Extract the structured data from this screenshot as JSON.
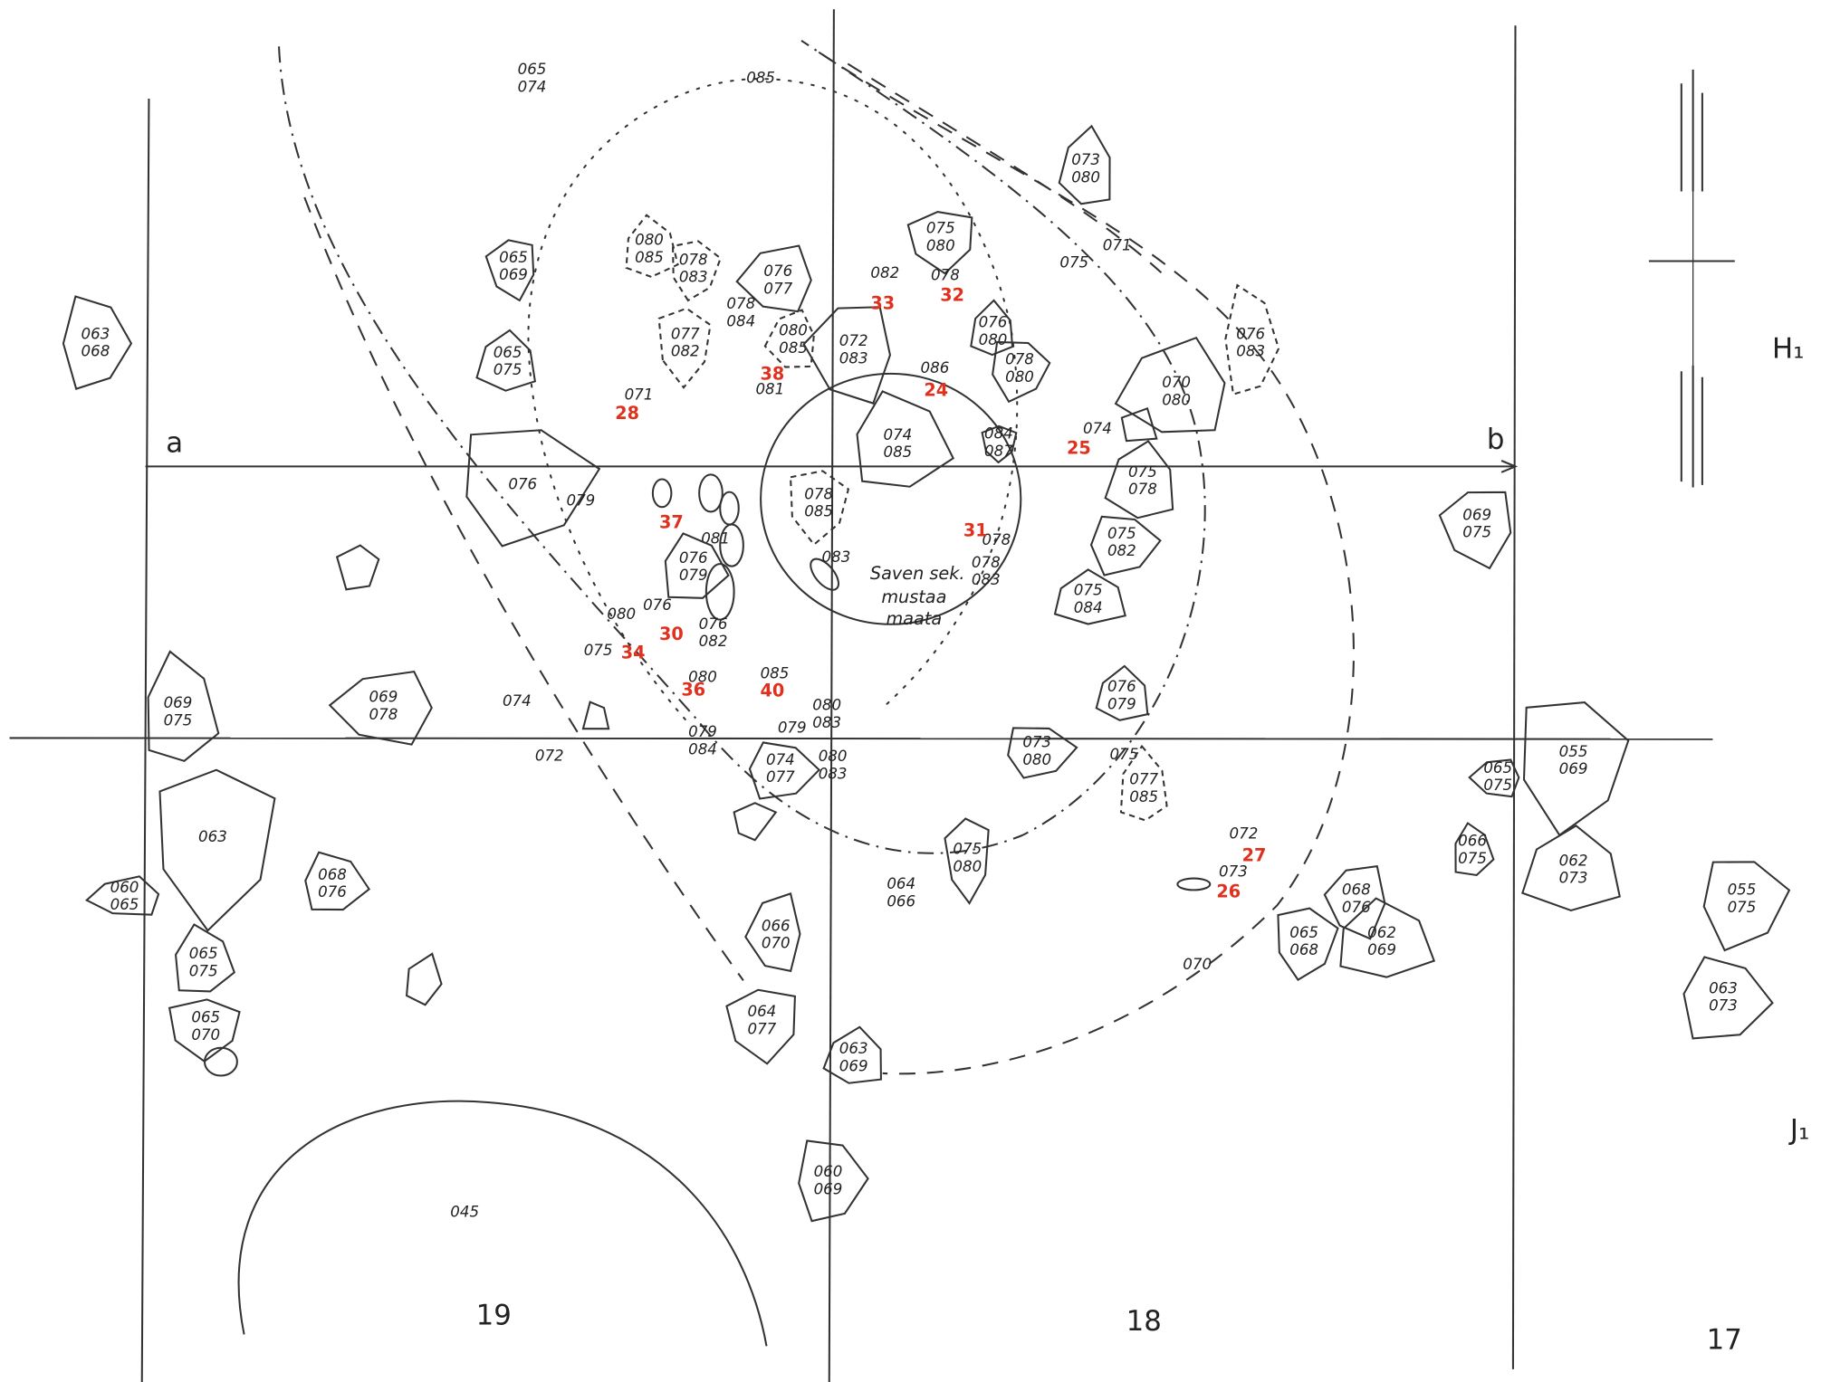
{
  "stones": [
    {
      "labels": [
        "063",
        "068"
      ]
    },
    {
      "labels": [
        "065",
        "069"
      ]
    },
    {
      "labels": [
        "065",
        "075"
      ]
    },
    {
      "labels": [
        "065",
        "074"
      ]
    },
    {
      "labels": [
        "085"
      ]
    },
    {
      "labels": [
        "080",
        "085"
      ]
    },
    {
      "labels": [
        "078",
        "083"
      ]
    },
    {
      "labels": [
        "076",
        "077"
      ]
    },
    {
      "labels": [
        "078",
        "084"
      ]
    },
    {
      "labels": [
        "077",
        "082"
      ]
    },
    {
      "labels": [
        "080",
        "085"
      ]
    },
    {
      "labels": [
        "081"
      ]
    },
    {
      "labels": [
        "075",
        "080"
      ]
    },
    {
      "labels": [
        "073",
        "080"
      ]
    },
    {
      "labels": [
        "071"
      ]
    },
    {
      "labels": [
        "075"
      ]
    },
    {
      "labels": [
        "076",
        "080"
      ]
    },
    {
      "labels": [
        "078",
        "080"
      ]
    },
    {
      "labels": [
        "072",
        "083"
      ]
    },
    {
      "labels": [
        "086"
      ]
    },
    {
      "labels": [
        "078"
      ]
    },
    {
      "labels": [
        "082"
      ]
    },
    {
      "labels": [
        "074",
        "085"
      ]
    },
    {
      "labels": [
        "084",
        "087"
      ]
    },
    {
      "labels": [
        "070",
        "080"
      ]
    },
    {
      "labels": [
        "076",
        "083"
      ]
    },
    {
      "labels": [
        "074"
      ]
    },
    {
      "labels": [
        "075",
        "078"
      ]
    },
    {
      "labels": [
        "075",
        "082"
      ]
    },
    {
      "labels": [
        "069",
        "075"
      ]
    },
    {
      "labels": [
        "075",
        "084"
      ]
    },
    {
      "labels": [
        "076"
      ]
    },
    {
      "labels": [
        "079"
      ]
    },
    {
      "labels": [
        "071"
      ]
    },
    {
      "labels": [
        "078",
        "085"
      ]
    },
    {
      "labels": [
        "081"
      ]
    },
    {
      "labels": [
        "076",
        "079"
      ]
    },
    {
      "labels": [
        "083"
      ]
    },
    {
      "labels": [
        "078"
      ]
    },
    {
      "labels": [
        "078",
        "083"
      ]
    },
    {
      "labels": [
        "080"
      ]
    },
    {
      "labels": [
        "076"
      ]
    },
    {
      "labels": [
        "076",
        "082"
      ]
    },
    {
      "labels": [
        "075"
      ]
    },
    {
      "labels": [
        "080"
      ]
    },
    {
      "labels": [
        "085"
      ]
    },
    {
      "labels": [
        "069",
        "078"
      ]
    },
    {
      "labels": [
        "069",
        "075"
      ]
    },
    {
      "labels": [
        "074"
      ]
    },
    {
      "labels": [
        "072"
      ]
    },
    {
      "labels": [
        "080",
        "083"
      ]
    },
    {
      "labels": [
        "079"
      ]
    },
    {
      "labels": [
        "079",
        "084"
      ]
    },
    {
      "labels": [
        "074",
        "077"
      ]
    },
    {
      "labels": [
        "080",
        "083"
      ]
    },
    {
      "labels": [
        "076",
        "079"
      ]
    },
    {
      "labels": [
        "073",
        "080"
      ]
    },
    {
      "labels": [
        "075"
      ]
    },
    {
      "labels": [
        "077",
        "085"
      ]
    },
    {
      "labels": [
        "055",
        "069"
      ]
    },
    {
      "labels": [
        "065",
        "075"
      ]
    },
    {
      "labels": [
        "066",
        "075"
      ]
    },
    {
      "labels": [
        "063"
      ]
    },
    {
      "labels": [
        "060",
        "065"
      ]
    },
    {
      "labels": [
        "068",
        "076"
      ]
    },
    {
      "labels": [
        "075",
        "080"
      ]
    },
    {
      "labels": [
        "064",
        "066"
      ]
    },
    {
      "labels": [
        "072"
      ]
    },
    {
      "labels": [
        "073"
      ]
    },
    {
      "labels": [
        "062",
        "073"
      ]
    },
    {
      "labels": [
        "055",
        "075"
      ]
    },
    {
      "labels": [
        "068",
        "076"
      ]
    },
    {
      "labels": [
        "062",
        "069"
      ]
    },
    {
      "labels": [
        "065",
        "068"
      ]
    },
    {
      "labels": [
        "066",
        "070"
      ]
    },
    {
      "labels": [
        "065",
        "075"
      ]
    },
    {
      "labels": [
        "065",
        "070"
      ]
    },
    {
      "labels": [
        "070"
      ]
    },
    {
      "labels": [
        "063",
        "073"
      ]
    },
    {
      "labels": [
        "064",
        "077"
      ]
    },
    {
      "labels": [
        "063",
        "069"
      ]
    },
    {
      "labels": [
        "060",
        "069"
      ]
    },
    {
      "labels": [
        "045"
      ]
    }
  ],
  "finds": [
    "24",
    "25",
    "26",
    "27",
    "28",
    "30",
    "31",
    "32",
    "33",
    "34",
    "36",
    "37",
    "38",
    "40"
  ],
  "note": [
    "Saven sek.",
    "mustaa",
    "maata"
  ],
  "axis_labels": [
    "a",
    "b"
  ],
  "row_labels": [
    "H₁",
    "J₁"
  ],
  "square_numbers": [
    "19",
    "18",
    "17"
  ]
}
